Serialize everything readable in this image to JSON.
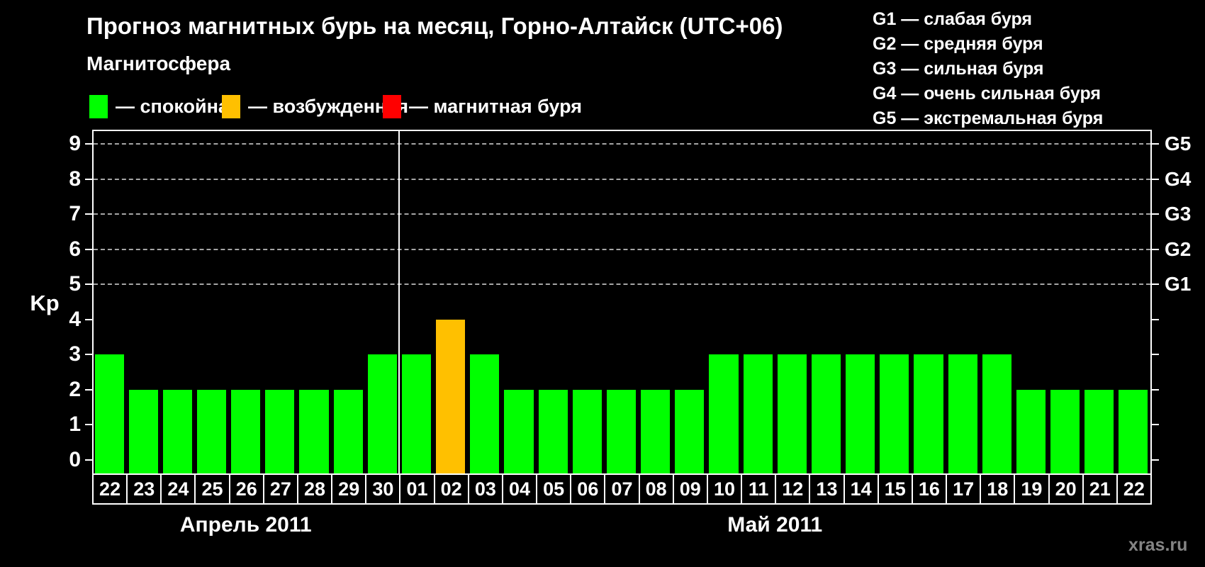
{
  "header": {
    "title": "Прогноз магнитных бурь на месяц, Горно-Алтайск (UTC+06)",
    "subtitle": "Магнитосфера"
  },
  "magnetosphere_legend": [
    {
      "state": "quiet",
      "label": "— спокойная",
      "color": "#00ff00"
    },
    {
      "state": "excited",
      "label": "— возбужденная",
      "color": "#ffc000"
    },
    {
      "state": "storm",
      "label": "— магнитная буря",
      "color": "#ff0000"
    }
  ],
  "storm_scale_legend": [
    "G1 — слабая буря",
    "G2 — средняя буря",
    "G3 — сильная буря",
    "G4 — очень сильная буря",
    "G5 — экстремальная буря"
  ],
  "watermark": "xras.ru",
  "chart_data": {
    "type": "bar",
    "title": "Прогноз магнитных бурь на месяц, Горно-Алтайск (UTC+06)",
    "ylabel": "Kp",
    "ylim": [
      0,
      9
    ],
    "yticks": [
      0,
      1,
      2,
      3,
      4,
      5,
      6,
      7,
      8,
      9
    ],
    "gridlines_at": [
      5,
      6,
      7,
      8,
      9
    ],
    "grid": "dashed horizontal at G-storm levels only",
    "legend_position": "top",
    "right_axis_labels": [
      {
        "label": "G1",
        "value": 5
      },
      {
        "label": "G2",
        "value": 6
      },
      {
        "label": "G3",
        "value": 7
      },
      {
        "label": "G4",
        "value": 8
      },
      {
        "label": "G5",
        "value": 9
      }
    ],
    "months": [
      {
        "label": "Апрель 2011",
        "days": [
          "22",
          "23",
          "24",
          "25",
          "26",
          "27",
          "28",
          "29",
          "30"
        ]
      },
      {
        "label": "Май 2011",
        "days": [
          "01",
          "02",
          "03",
          "04",
          "05",
          "06",
          "07",
          "08",
          "09",
          "10",
          "11",
          "12",
          "13",
          "14",
          "15",
          "16",
          "17",
          "18",
          "19",
          "20",
          "21",
          "22"
        ]
      }
    ],
    "bars": [
      {
        "month": "Апрель 2011",
        "day": "22",
        "kp": 3,
        "state": "quiet"
      },
      {
        "month": "Апрель 2011",
        "day": "23",
        "kp": 2,
        "state": "quiet"
      },
      {
        "month": "Апрель 2011",
        "day": "24",
        "kp": 2,
        "state": "quiet"
      },
      {
        "month": "Апрель 2011",
        "day": "25",
        "kp": 2,
        "state": "quiet"
      },
      {
        "month": "Апрель 2011",
        "day": "26",
        "kp": 2,
        "state": "quiet"
      },
      {
        "month": "Апрель 2011",
        "day": "27",
        "kp": 2,
        "state": "quiet"
      },
      {
        "month": "Апрель 2011",
        "day": "28",
        "kp": 2,
        "state": "quiet"
      },
      {
        "month": "Апрель 2011",
        "day": "29",
        "kp": 2,
        "state": "quiet"
      },
      {
        "month": "Апрель 2011",
        "day": "30",
        "kp": 3,
        "state": "quiet"
      },
      {
        "month": "Май 2011",
        "day": "01",
        "kp": 3,
        "state": "quiet"
      },
      {
        "month": "Май 2011",
        "day": "02",
        "kp": 4,
        "state": "excited"
      },
      {
        "month": "Май 2011",
        "day": "03",
        "kp": 3,
        "state": "quiet"
      },
      {
        "month": "Май 2011",
        "day": "04",
        "kp": 2,
        "state": "quiet"
      },
      {
        "month": "Май 2011",
        "day": "05",
        "kp": 2,
        "state": "quiet"
      },
      {
        "month": "Май 2011",
        "day": "06",
        "kp": 2,
        "state": "quiet"
      },
      {
        "month": "Май 2011",
        "day": "07",
        "kp": 2,
        "state": "quiet"
      },
      {
        "month": "Май 2011",
        "day": "08",
        "kp": 2,
        "state": "quiet"
      },
      {
        "month": "Май 2011",
        "day": "09",
        "kp": 2,
        "state": "quiet"
      },
      {
        "month": "Май 2011",
        "day": "10",
        "kp": 3,
        "state": "quiet"
      },
      {
        "month": "Май 2011",
        "day": "11",
        "kp": 3,
        "state": "quiet"
      },
      {
        "month": "Май 2011",
        "day": "12",
        "kp": 3,
        "state": "quiet"
      },
      {
        "month": "Май 2011",
        "day": "13",
        "kp": 3,
        "state": "quiet"
      },
      {
        "month": "Май 2011",
        "day": "14",
        "kp": 3,
        "state": "quiet"
      },
      {
        "month": "Май 2011",
        "day": "15",
        "kp": 3,
        "state": "quiet"
      },
      {
        "month": "Май 2011",
        "day": "16",
        "kp": 3,
        "state": "quiet"
      },
      {
        "month": "Май 2011",
        "day": "17",
        "kp": 3,
        "state": "quiet"
      },
      {
        "month": "Май 2011",
        "day": "18",
        "kp": 3,
        "state": "quiet"
      },
      {
        "month": "Май 2011",
        "day": "19",
        "kp": 2,
        "state": "quiet"
      },
      {
        "month": "Май 2011",
        "day": "20",
        "kp": 2,
        "state": "quiet"
      },
      {
        "month": "Май 2011",
        "day": "21",
        "kp": 2,
        "state": "quiet"
      },
      {
        "month": "Май 2011",
        "day": "22",
        "kp": 2,
        "state": "quiet"
      }
    ],
    "state_colors": {
      "quiet": "#00ff00",
      "excited": "#ffc000",
      "storm": "#ff0000"
    }
  }
}
